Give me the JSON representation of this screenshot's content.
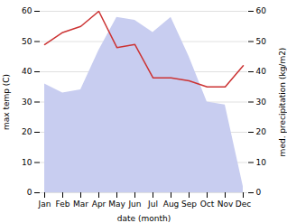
{
  "chart_data": {
    "type": "line",
    "categories": [
      "Jan",
      "Feb",
      "Mar",
      "Apr",
      "May",
      "Jun",
      "Jul",
      "Aug",
      "Sep",
      "Oct",
      "Nov",
      "Dec"
    ],
    "xlabel": "date (month)",
    "ylabel": "max temp (C)",
    "y2label": "med. precipitation (kg/m2)",
    "series": [
      {
        "type": "area",
        "axis": "y2",
        "color": "#c8cdf0",
        "values": [
          36,
          33,
          34,
          47,
          58,
          57,
          53,
          58,
          45,
          30,
          29,
          2
        ]
      },
      {
        "type": "line",
        "color": "#cc3333",
        "values": [
          49,
          53,
          55,
          60,
          48,
          49,
          38,
          38,
          37,
          35,
          35,
          42
        ]
      }
    ],
    "ylim": [
      0,
      60
    ],
    "yticks": [
      0,
      10,
      20,
      30,
      40,
      50,
      60
    ],
    "y2lim": [
      0,
      60
    ],
    "y2ticks": [
      0,
      10,
      20,
      30,
      40,
      50,
      60
    ],
    "grid": true
  }
}
